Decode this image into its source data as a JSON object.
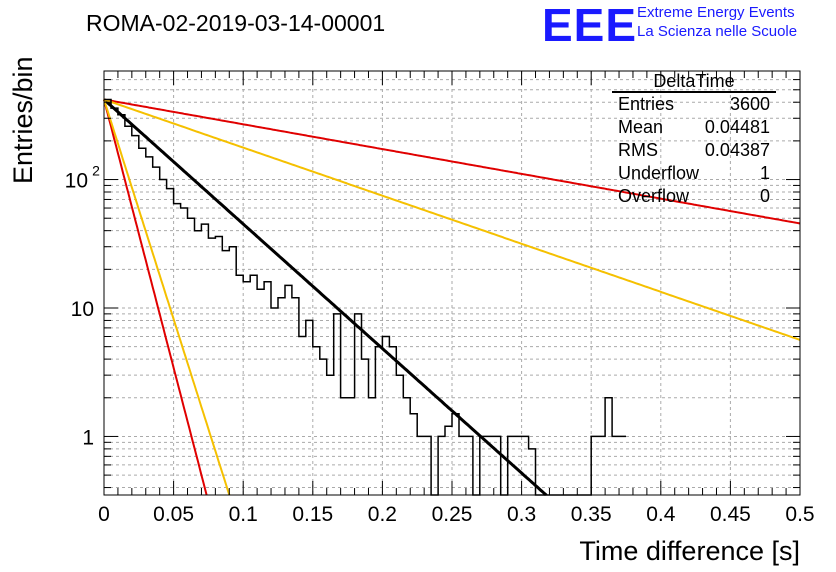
{
  "header": {
    "title": "ROMA-02-2019-03-14-00001",
    "logo_text": "EEE",
    "logo_line1": "Extreme Energy Events",
    "logo_line2": "La Scienza nelle Scuole",
    "logo_color": "#1a1aff"
  },
  "stats": {
    "name": "DeltaTime",
    "rows": [
      {
        "label": "Entries",
        "value": "3600"
      },
      {
        "label": "Mean",
        "value": "0.04481"
      },
      {
        "label": "RMS",
        "value": "0.04387"
      },
      {
        "label": "Underflow",
        "value": "1"
      },
      {
        "label": "Overflow",
        "value": "0"
      }
    ]
  },
  "chart_data": {
    "type": "line",
    "xlabel": "Time difference [s]",
    "ylabel": "Entries/bin",
    "xlim": [
      0,
      0.5
    ],
    "ylim": [
      0.35,
      700
    ],
    "yscale": "log",
    "grid": true,
    "x_ticks": [
      "0",
      "0.05",
      "0.1",
      "0.15",
      "0.2",
      "0.25",
      "0.3",
      "0.35",
      "0.4",
      "0.45",
      "0.5"
    ],
    "y_ticks": [
      "1",
      "10",
      "10^2"
    ],
    "histogram": {
      "bin_width": 0.005,
      "start": 0,
      "counts": [
        420,
        360,
        320,
        260,
        220,
        175,
        150,
        125,
        100,
        85,
        65,
        60,
        50,
        40,
        45,
        35,
        36,
        28,
        30,
        18,
        16,
        18,
        14,
        16,
        10,
        12,
        15,
        12,
        6,
        8,
        5,
        4,
        3,
        9,
        2,
        2,
        9,
        4,
        2,
        5,
        6,
        5,
        3,
        2,
        1.5,
        1,
        1,
        0,
        1,
        1.2,
        1.5,
        1,
        1,
        0,
        1,
        1,
        1,
        0,
        1,
        1,
        1,
        0.8,
        0,
        0,
        0,
        0,
        0,
        0,
        0,
        0,
        1,
        1,
        2,
        1,
        1
      ],
      "color": "#000000"
    },
    "series": [
      {
        "start": 420,
        "tau": 0.0448,
        "color": "#000000",
        "width": 3
      },
      {
        "start": 420,
        "tau": 0.225,
        "color": "#e00000",
        "width": 2
      },
      {
        "start": 420,
        "tau": 0.116,
        "color": "#f5c000",
        "width": 2
      },
      {
        "start": 420,
        "tau": 0.0104,
        "color": "#e00000",
        "width": 2
      },
      {
        "start": 420,
        "tau": 0.0127,
        "color": "#f5c000",
        "width": 2
      }
    ]
  }
}
